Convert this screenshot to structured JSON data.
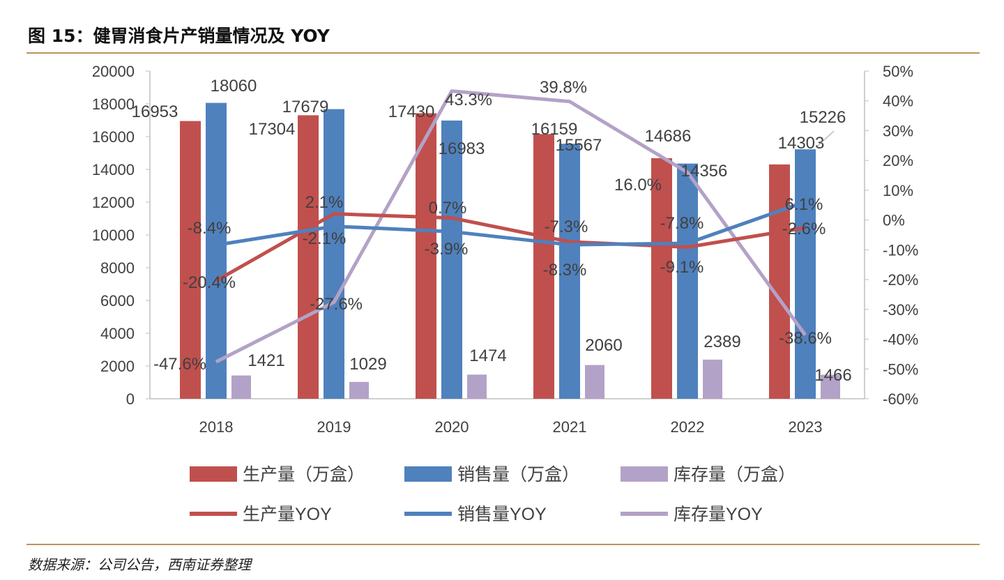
{
  "title": "图 15：健胃消食片产销量情况及 YOY",
  "source": "数据来源：公司公告，西南证券整理",
  "chart_data": {
    "type": "bar",
    "title": "图 15：健胃消食片产销量情况及 YOY",
    "categories": [
      "2018",
      "2019",
      "2020",
      "2021",
      "2022",
      "2023"
    ],
    "left_axis": {
      "ylim": [
        0,
        20000
      ],
      "ticks": [
        "0",
        "2000",
        "4000",
        "6000",
        "8000",
        "10000",
        "12000",
        "14000",
        "16000",
        "18000",
        "20000"
      ]
    },
    "right_axis": {
      "ylim": [
        -60,
        50
      ],
      "ticks": [
        "-60%",
        "-50%",
        "-40%",
        "-30%",
        "-20%",
        "-10%",
        "0%",
        "10%",
        "20%",
        "30%",
        "40%",
        "50%"
      ]
    },
    "series": [
      {
        "name": "生产量（万盒）",
        "type": "bar",
        "axis": "left",
        "color": "#c0504d",
        "values": [
          16953,
          17304,
          17430,
          16159,
          14686,
          14303
        ],
        "labels": [
          "16953",
          "17304",
          "17430",
          "16159",
          "14686",
          "14303"
        ]
      },
      {
        "name": "销售量（万盒）",
        "type": "bar",
        "axis": "left",
        "color": "#4f81bd",
        "values": [
          18060,
          17679,
          16983,
          15567,
          14356,
          15226
        ],
        "labels": [
          "18060",
          "17679",
          "16983",
          "15567",
          "14356",
          "15226"
        ]
      },
      {
        "name": "库存量（万盒）",
        "type": "bar",
        "axis": "left",
        "color": "#b3a2c7",
        "values": [
          1421,
          1029,
          1474,
          2060,
          2389,
          1466
        ],
        "labels": [
          "1421",
          "1029",
          "1474",
          "2060",
          "2389",
          "1466"
        ]
      },
      {
        "name": "生产量YOY",
        "type": "line",
        "axis": "right",
        "color": "#c0504d",
        "values": [
          -20.4,
          2.1,
          0.7,
          -7.3,
          -9.1,
          -2.6
        ],
        "labels": [
          "-20.4%",
          "2.1%",
          "0.7%",
          "-7.3%",
          "-9.1%",
          "-2.6%"
        ]
      },
      {
        "name": "销售量YOY",
        "type": "line",
        "axis": "right",
        "color": "#4f81bd",
        "values": [
          -8.4,
          -2.1,
          -3.9,
          -8.3,
          -7.8,
          6.1
        ],
        "labels": [
          "-8.4%",
          "-2.1%",
          "-3.9%",
          "-8.3%",
          "-7.8%",
          "6.1%"
        ]
      },
      {
        "name": "库存量YOY",
        "type": "line",
        "axis": "right",
        "color": "#b3a2c7",
        "values": [
          -47.6,
          -27.6,
          43.3,
          39.8,
          16.0,
          -38.6
        ],
        "labels": [
          "-47.6%",
          "-27.6%",
          "43.3%",
          "39.8%",
          "16.0%",
          "-38.6%"
        ]
      }
    ],
    "legend_position": "bottom"
  }
}
